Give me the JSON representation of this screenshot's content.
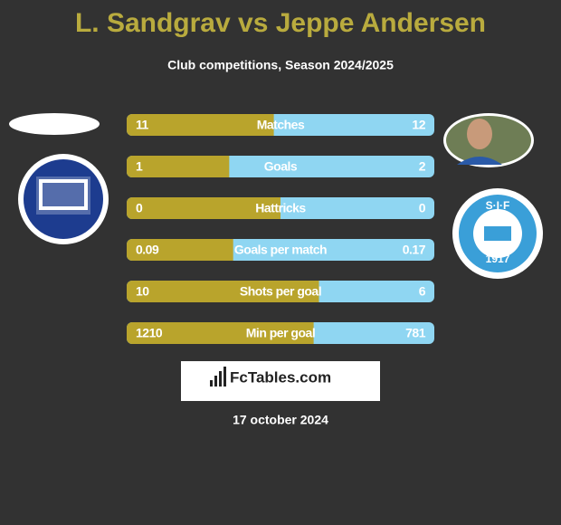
{
  "header": {
    "title": "L. Sandgrav vs Jeppe Andersen",
    "subtitle": "Club competitions, Season 2024/2025"
  },
  "rows": [
    {
      "label": "Matches",
      "left": 11,
      "right": 12
    },
    {
      "label": "Goals",
      "left": 1,
      "right": 2
    },
    {
      "label": "Hattricks",
      "left": 0,
      "right": 0
    },
    {
      "label": "Goals per match",
      "left": 0.09,
      "right": 0.17
    },
    {
      "label": "Shots per goal",
      "left": 10,
      "right": 6
    },
    {
      "label": "Min per goal",
      "left": 1210,
      "right": 781
    }
  ],
  "colors": {
    "left": "#b9a42c",
    "right": "#8fd6f2"
  },
  "right_club_logo": {
    "top": "S·I·F",
    "bottom": "1917"
  },
  "brand": "FcTables.com",
  "date": "17 october 2024"
}
